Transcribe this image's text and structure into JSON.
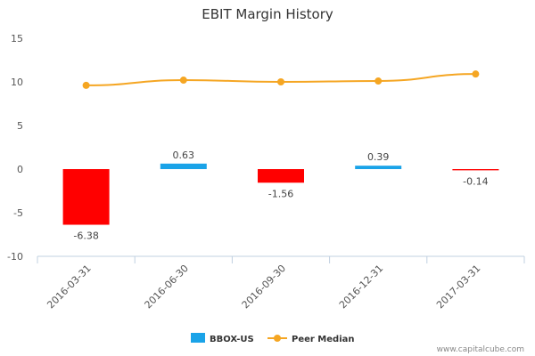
{
  "chart_data": {
    "type": "bar",
    "title": "EBIT Margin History",
    "xlabel": "",
    "ylabel": "",
    "categories": [
      "2016-03-31",
      "2016-06-30",
      "2016-09-30",
      "2016-12-31",
      "2017-03-31"
    ],
    "ylim": [
      -10,
      15
    ],
    "yticks": [
      -10,
      -5,
      0,
      5,
      10,
      15
    ],
    "grid": false,
    "legend_position": "bottom-center",
    "series": [
      {
        "name": "BBOX-US",
        "kind": "bar",
        "values": [
          -6.38,
          0.63,
          -1.56,
          0.39,
          -0.14
        ],
        "labels": [
          "-6.38",
          "0.63",
          "-1.56",
          "0.39",
          "-0.14"
        ],
        "color_positive": "#1aa3e8",
        "color_negative": "#ff0000"
      },
      {
        "name": "Peer Median",
        "kind": "line",
        "values": [
          9.6,
          10.2,
          10.0,
          10.1,
          10.9
        ],
        "color": "#f5a623"
      }
    ],
    "credit": "www.capitalcube.com"
  }
}
